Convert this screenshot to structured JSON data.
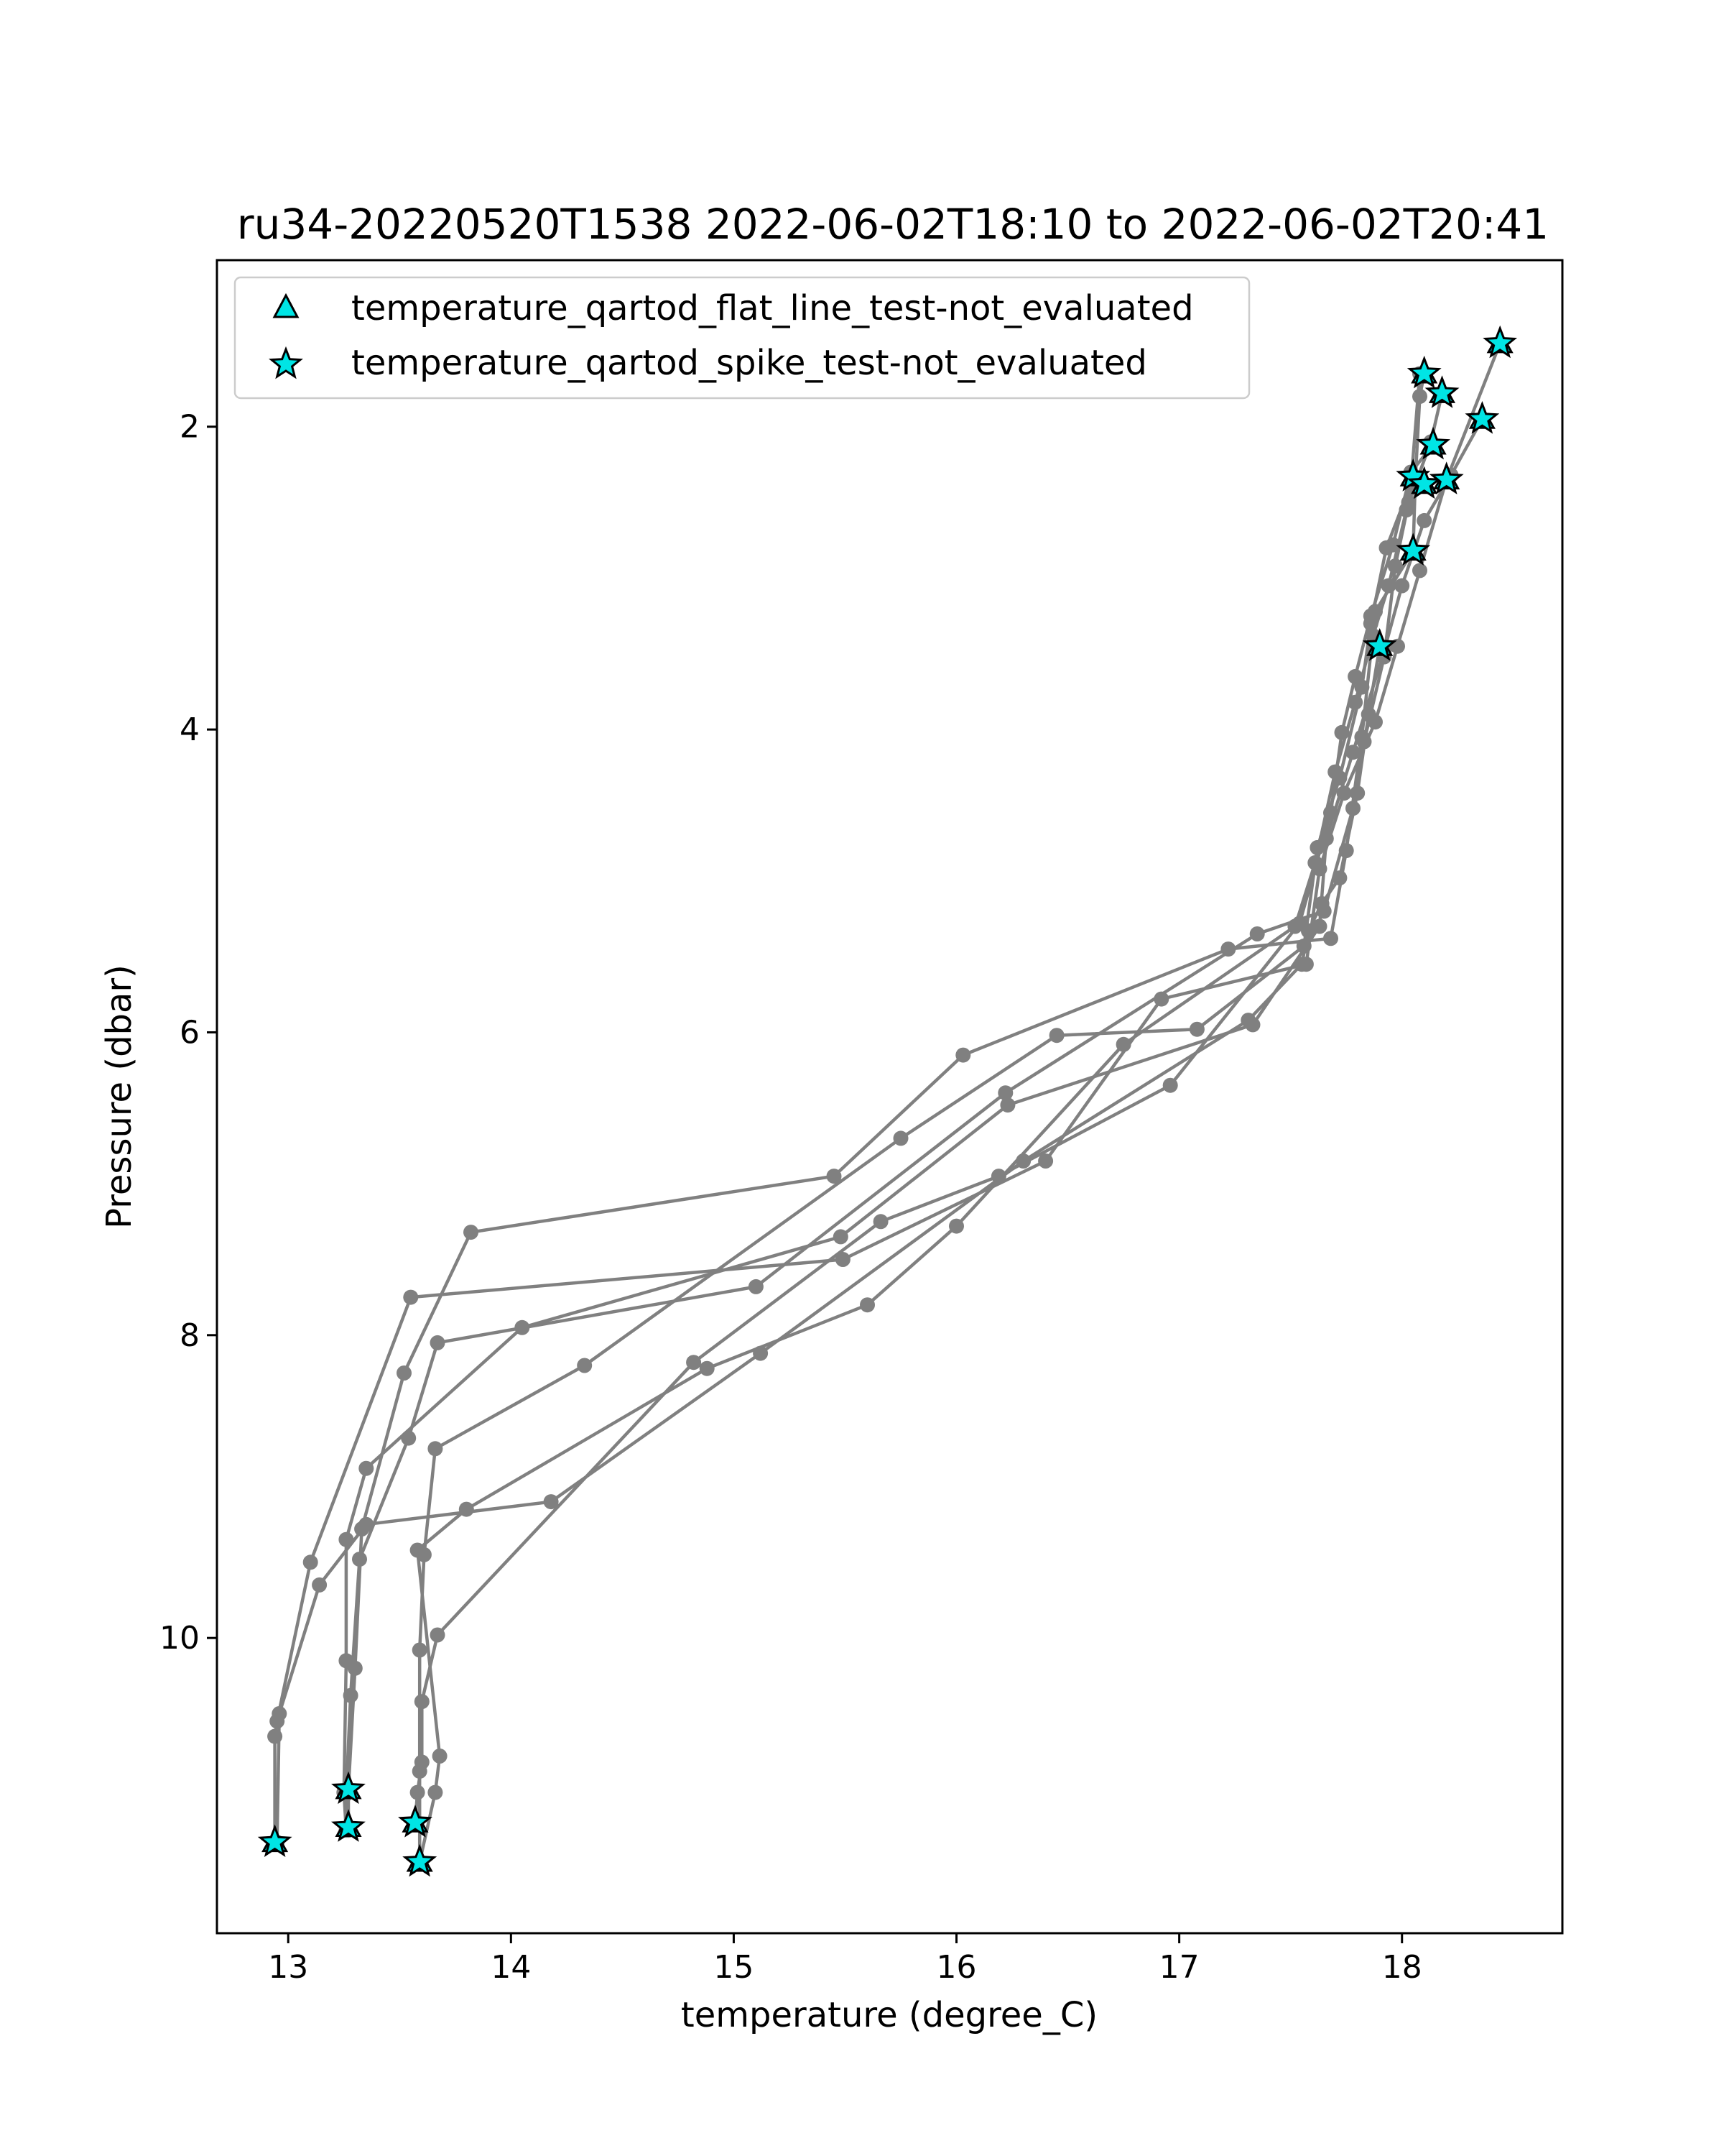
{
  "chart_data": {
    "type": "line",
    "title": "ru34-20220520T1538 2022-06-02T18:10 to 2022-06-02T20:41",
    "xlabel": "temperature (degree_C)",
    "ylabel": "Pressure (dbar)",
    "xlim": [
      12.68,
      18.72
    ],
    "ylim": [
      11.95,
      0.9
    ],
    "y_inverted": true,
    "xticks": [
      13,
      14,
      15,
      16,
      17,
      18
    ],
    "yticks": [
      2,
      4,
      6,
      8,
      10
    ],
    "grid": false,
    "legend_position": "upper-left",
    "colors": {
      "profile_line": "#808080",
      "marker_fill": "#00e5e5",
      "marker_edge": "#000000"
    },
    "legend": [
      {
        "label": "temperature_qartod_flat_line_test-not_evaluated",
        "marker": "triangle"
      },
      {
        "label": "temperature_qartod_spike_test-not_evaluated",
        "marker": "star"
      }
    ],
    "series": [
      {
        "x": [
          18.1,
          18.08,
          18.06,
          18.05,
          17.88,
          17.82,
          17.75,
          17.68,
          17.22,
          16.03,
          15.45,
          13.82,
          13.52,
          13.33,
          13.3,
          13.27,
          13.27
        ],
        "y": [
          1.65,
          1.8,
          2.35,
          2.82,
          3.22,
          4.05,
          4.8,
          5.38,
          5.45,
          6.15,
          6.95,
          7.32,
          8.25,
          9.28,
          10.2,
          11.0,
          11.25
        ]
      },
      {
        "x": [
          18.18,
          18.13,
          18.03,
          17.97,
          17.92,
          17.83,
          17.78,
          17.65,
          17.35,
          16.22,
          15.1,
          13.67,
          13.54,
          13.32,
          13.28,
          13.26,
          13.27
        ],
        "y": [
          1.78,
          2.1,
          2.5,
          2.92,
          3.52,
          4.08,
          4.52,
          5.2,
          5.35,
          6.4,
          7.68,
          8.05,
          8.68,
          9.48,
          10.38,
          11.03,
          11.27
        ]
      },
      {
        "x": [
          18.36,
          18.22,
          18.1,
          18.0,
          17.92,
          17.78,
          17.66,
          17.63,
          17.33,
          16.23,
          15.48,
          14.05,
          13.35,
          13.26,
          13.26,
          13.25,
          13.26
        ],
        "y": [
          1.95,
          2.32,
          2.62,
          3.05,
          3.48,
          4.15,
          4.72,
          5.3,
          5.95,
          6.48,
          7.35,
          7.95,
          8.88,
          9.35,
          10.15,
          11.02,
          11.27
        ]
      },
      {
        "x": [
          18.44,
          18.2,
          18.08,
          17.98,
          17.88,
          17.74,
          17.63,
          17.57,
          16.92,
          16.4,
          15.49,
          13.55,
          13.1,
          12.95,
          12.94,
          12.94
        ],
        "y": [
          1.45,
          2.35,
          2.95,
          3.45,
          3.95,
          4.42,
          4.92,
          5.55,
          5.78,
          6.85,
          7.5,
          7.75,
          9.5,
          10.55,
          10.65,
          11.35
        ]
      },
      {
        "x": [
          18.08,
          18.04,
          17.93,
          17.86,
          17.82,
          17.72,
          17.62,
          17.56,
          17.08,
          16.45,
          15.75,
          14.33,
          13.66,
          13.61,
          13.59,
          13.59,
          13.59
        ],
        "y": [
          1.65,
          2.38,
          2.8,
          3.3,
          3.72,
          4.32,
          4.78,
          5.43,
          5.98,
          6.02,
          6.7,
          8.2,
          8.75,
          9.45,
          10.08,
          10.88,
          11.48
        ]
      },
      {
        "x": [
          18.14,
          18.04,
          17.96,
          17.86,
          17.79,
          17.73,
          17.68,
          17.54,
          16.96,
          16.19,
          15.66,
          14.82,
          13.67,
          13.6,
          13.6,
          13.58,
          13.57
        ],
        "y": [
          2.12,
          2.3,
          2.78,
          3.25,
          3.65,
          4.02,
          4.55,
          5.28,
          6.35,
          6.95,
          7.25,
          8.18,
          9.98,
          10.42,
          10.82,
          11.02,
          11.22
        ]
      },
      {
        "x": [
          18.05,
          18.02,
          17.94,
          17.87,
          17.79,
          17.7,
          17.61,
          17.52,
          16.75,
          16.0,
          15.6,
          14.88,
          13.8,
          13.58,
          13.68,
          13.66,
          13.59
        ],
        "y": [
          2.33,
          2.55,
          3.05,
          3.38,
          3.82,
          4.28,
          4.88,
          5.3,
          6.08,
          7.28,
          7.8,
          8.22,
          9.15,
          9.42,
          10.78,
          11.02,
          11.48
        ]
      },
      {
        "x": [
          17.9,
          17.85,
          17.8,
          17.72,
          17.64,
          17.58,
          17.55,
          17.31,
          16.3,
          15.12,
          14.18,
          13.35,
          13.14,
          12.96,
          12.95
        ],
        "y": [
          3.45,
          3.9,
          4.42,
          4.98,
          5.15,
          5.33,
          5.55,
          5.92,
          6.85,
          8.12,
          9.1,
          9.25,
          9.65,
          10.5,
          11.35
        ]
      }
    ],
    "spike_test_not_evaluated_points": {
      "x": [
        18.44,
        18.1,
        18.18,
        18.36,
        18.14,
        18.05,
        18.1,
        18.2,
        18.05,
        17.9,
        13.27,
        13.27,
        12.94,
        13.57,
        13.59
      ],
      "y": [
        1.45,
        1.65,
        1.78,
        1.95,
        2.12,
        2.33,
        2.38,
        2.35,
        2.82,
        3.45,
        11.0,
        11.25,
        11.35,
        11.22,
        11.48
      ]
    }
  }
}
